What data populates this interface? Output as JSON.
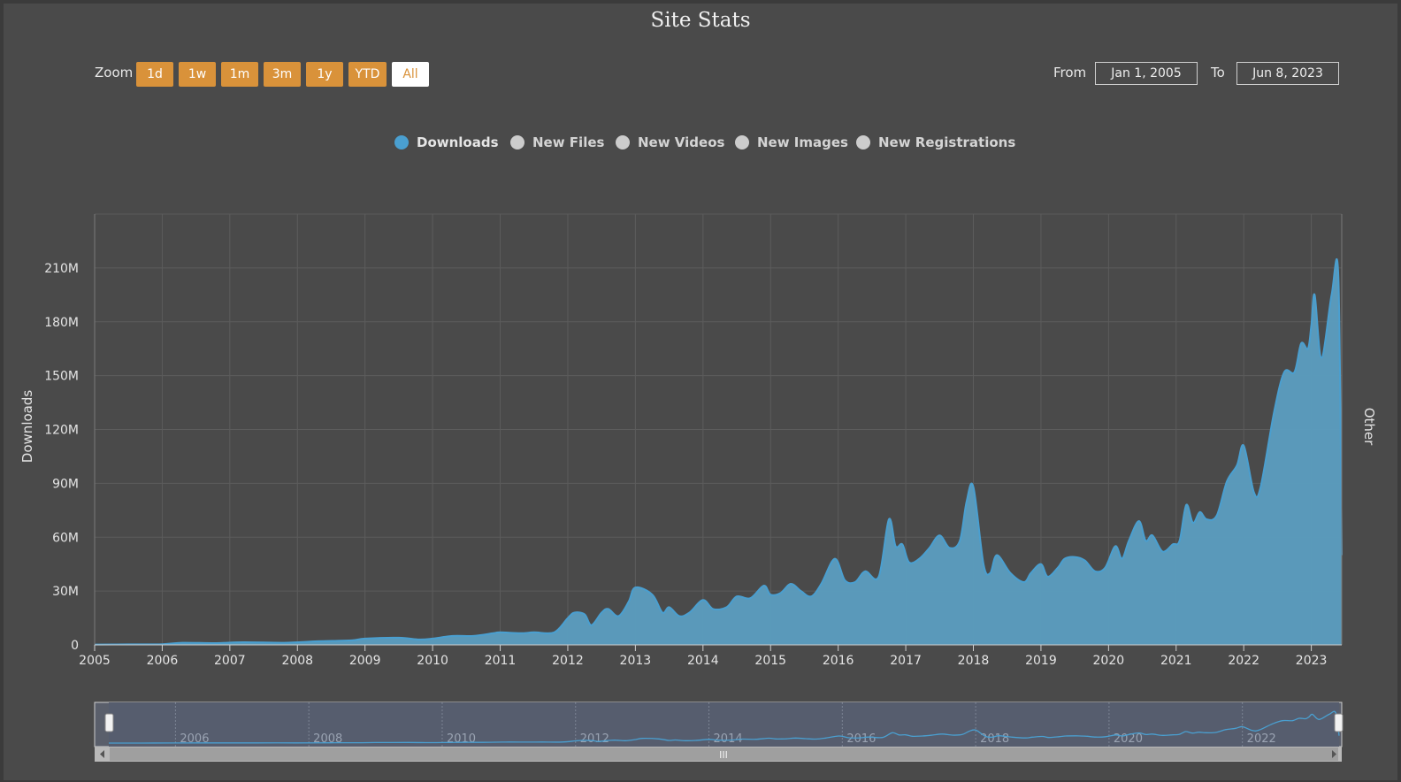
{
  "title": "Site Stats",
  "zoom": {
    "label": "Zoom",
    "buttons": [
      "1d",
      "1w",
      "1m",
      "3m",
      "1y",
      "YTD",
      "All"
    ],
    "active": "All"
  },
  "range": {
    "from_label": "From",
    "from_value": "Jan 1, 2005",
    "to_label": "To",
    "to_value": "Jun 8, 2023"
  },
  "legend": [
    {
      "name": "Downloads",
      "active": true,
      "color": "#4a9fd0"
    },
    {
      "name": "New Files",
      "active": false,
      "color": "#cccccc"
    },
    {
      "name": "New Videos",
      "active": false,
      "color": "#cccccc"
    },
    {
      "name": "New Images",
      "active": false,
      "color": "#cccccc"
    },
    {
      "name": "New Registrations",
      "active": false,
      "color": "#cccccc"
    }
  ],
  "colors": {
    "background": "#4a4a4a",
    "series_fill": "#5b9dc0",
    "series_line": "#4a9fd0",
    "button": "#d9923a",
    "grid": "#5c5c5c"
  },
  "chart_data": {
    "type": "area",
    "ylabel": "Downloads",
    "ylabel_right": "Other",
    "xlabel": "",
    "xlim": [
      2005.0,
      2023.45
    ],
    "ylim": [
      0,
      240000000
    ],
    "y_ticks": [
      0,
      30000000,
      60000000,
      90000000,
      120000000,
      150000000,
      180000000,
      210000000
    ],
    "y_tick_labels": [
      "0",
      "30M",
      "60M",
      "90M",
      "120M",
      "150M",
      "180M",
      "210M"
    ],
    "x_ticks": [
      2005,
      2006,
      2007,
      2008,
      2009,
      2010,
      2011,
      2012,
      2013,
      2014,
      2015,
      2016,
      2017,
      2018,
      2019,
      2020,
      2021,
      2022,
      2023
    ],
    "x_tick_labels": [
      "2005",
      "2006",
      "2007",
      "2008",
      "2009",
      "2010",
      "2011",
      "2012",
      "2013",
      "2014",
      "2015",
      "2016",
      "2017",
      "2018",
      "2019",
      "2020",
      "2021",
      "2022",
      "2023"
    ],
    "grid": true,
    "legend_position": "top-center",
    "series": [
      {
        "name": "Downloads",
        "x": [
          2005.0,
          2005.5,
          2006.0,
          2006.3,
          2006.8,
          2007.2,
          2007.8,
          2008.3,
          2008.8,
          2009.0,
          2009.5,
          2009.8,
          2010.0,
          2010.3,
          2010.6,
          2010.9,
          2011.0,
          2011.3,
          2011.5,
          2011.8,
          2012.0,
          2012.1,
          2012.25,
          2012.35,
          2012.5,
          2012.6,
          2012.75,
          2012.9,
          2013.0,
          2013.25,
          2013.4,
          2013.5,
          2013.65,
          2013.8,
          2014.0,
          2014.15,
          2014.35,
          2014.5,
          2014.7,
          2014.9,
          2015.0,
          2015.15,
          2015.3,
          2015.45,
          2015.6,
          2015.75,
          2015.95,
          2016.1,
          2016.25,
          2016.4,
          2016.6,
          2016.75,
          2016.85,
          2016.95,
          2017.05,
          2017.2,
          2017.35,
          2017.5,
          2017.65,
          2017.8,
          2017.9,
          2018.0,
          2018.15,
          2018.25,
          2018.35,
          2018.55,
          2018.75,
          2018.85,
          2019.0,
          2019.1,
          2019.25,
          2019.35,
          2019.5,
          2019.65,
          2019.8,
          2019.95,
          2020.1,
          2020.2,
          2020.3,
          2020.45,
          2020.55,
          2020.65,
          2020.8,
          2020.95,
          2021.05,
          2021.15,
          2021.25,
          2021.35,
          2021.45,
          2021.6,
          2021.75,
          2021.9,
          2022.0,
          2022.15,
          2022.25,
          2022.45,
          2022.6,
          2022.75,
          2022.85,
          2022.95,
          2023.0,
          2023.05,
          2023.15,
          2023.3,
          2023.4,
          2023.45
        ],
        "values": [
          200000,
          300000,
          400000,
          1200000,
          1000000,
          1500000,
          1200000,
          2000000,
          2500000,
          3500000,
          4000000,
          3000000,
          3500000,
          5000000,
          5000000,
          6500000,
          7000000,
          6500000,
          7000000,
          7000000,
          15000000,
          18000000,
          17000000,
          11000000,
          18000000,
          20000000,
          16000000,
          24000000,
          32000000,
          28000000,
          18000000,
          21000000,
          16000000,
          18000000,
          25000000,
          20000000,
          21000000,
          27000000,
          26000000,
          33000000,
          28000000,
          29000000,
          34000000,
          30000000,
          27000000,
          34000000,
          48000000,
          36000000,
          35000000,
          41000000,
          38000000,
          70000000,
          55000000,
          56000000,
          46000000,
          48000000,
          54000000,
          61000000,
          54000000,
          58000000,
          80000000,
          88000000,
          45000000,
          40000000,
          50000000,
          40000000,
          35000000,
          40000000,
          45000000,
          38000000,
          43000000,
          48000000,
          49000000,
          47000000,
          41000000,
          43000000,
          55000000,
          48000000,
          58000000,
          69000000,
          58000000,
          61000000,
          52000000,
          56000000,
          58000000,
          78000000,
          68000000,
          74000000,
          70000000,
          72000000,
          91000000,
          100000000,
          111000000,
          85000000,
          88000000,
          130000000,
          152000000,
          152000000,
          168000000,
          165000000,
          178000000,
          195000000,
          160000000,
          195000000,
          205000000,
          50000000
        ]
      }
    ]
  },
  "navigator": {
    "ticks": [
      "2006",
      "2008",
      "2010",
      "2012",
      "2014",
      "2016",
      "2018",
      "2020",
      "2022"
    ],
    "scrollbar_grip": "III"
  }
}
